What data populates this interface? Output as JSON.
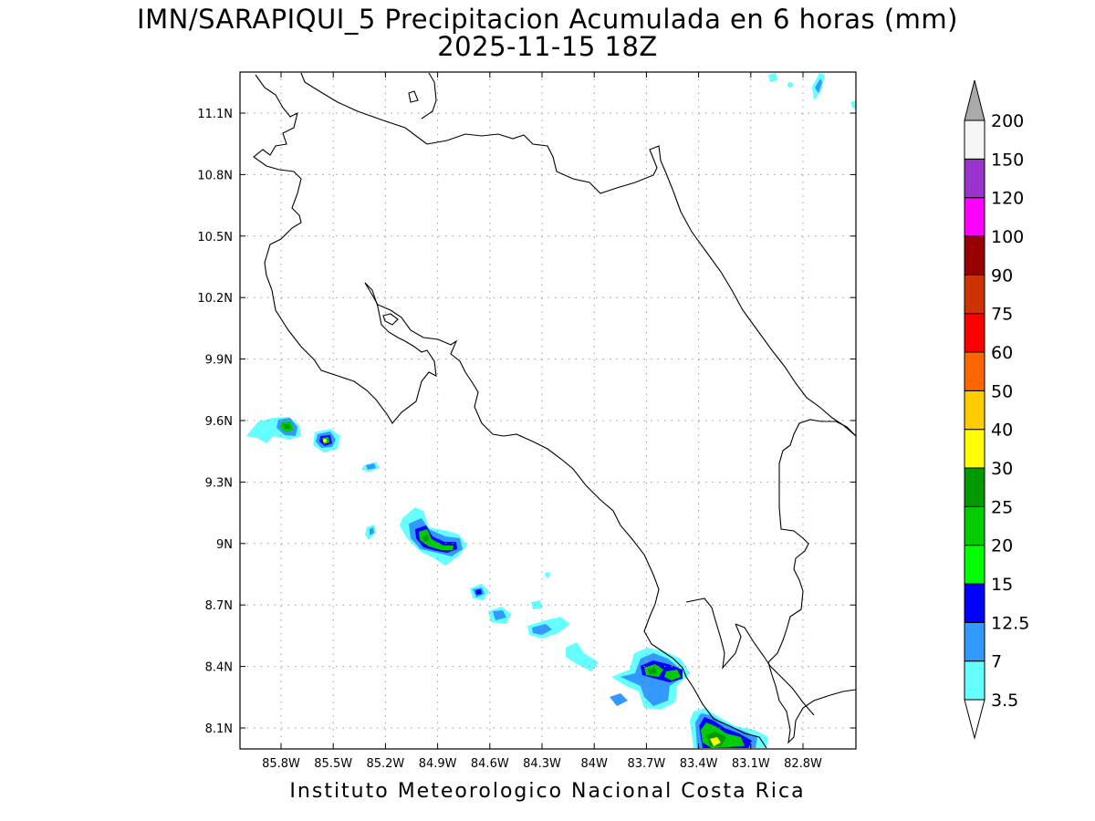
{
  "title": {
    "line1": "IMN/SARAPIQUI_5 Precipitacion Acumulada en 6 horas (mm)",
    "line2": "2025-11-15 18Z"
  },
  "footer": "Instituto Meteorologico Nacional Costa Rica",
  "axes": {
    "x_ticks": [
      "85.8W",
      "85.5W",
      "85.2W",
      "84.9W",
      "84.6W",
      "84.3W",
      "84W",
      "83.7W",
      "83.4W",
      "83.1W",
      "82.8W"
    ],
    "y_ticks": [
      "11.1N",
      "10.8N",
      "10.5N",
      "10.2N",
      "9.9N",
      "9.6N",
      "9.3N",
      "9N",
      "8.7N",
      "8.4N",
      "8.1N"
    ],
    "lon_range": [
      -86.05,
      -83.05
    ],
    "lat_range": [
      8.02,
      11.25
    ],
    "grid": "dotted"
  },
  "colorbar": {
    "levels": [
      "3.5",
      "7",
      "12.5",
      "15",
      "20",
      "25",
      "30",
      "40",
      "50",
      "60",
      "75",
      "90",
      "100",
      "120",
      "150",
      "200"
    ],
    "colors": [
      "#66ffff",
      "#3399ff",
      "#0000ff",
      "#00ff00",
      "#00cc00",
      "#009900",
      "#ffff00",
      "#ffcc00",
      "#ff6600",
      "#ff0000",
      "#cc3300",
      "#990000",
      "#ff00ff",
      "#9933cc",
      "#f5f5f5",
      "#aaaaaa"
    ]
  }
}
